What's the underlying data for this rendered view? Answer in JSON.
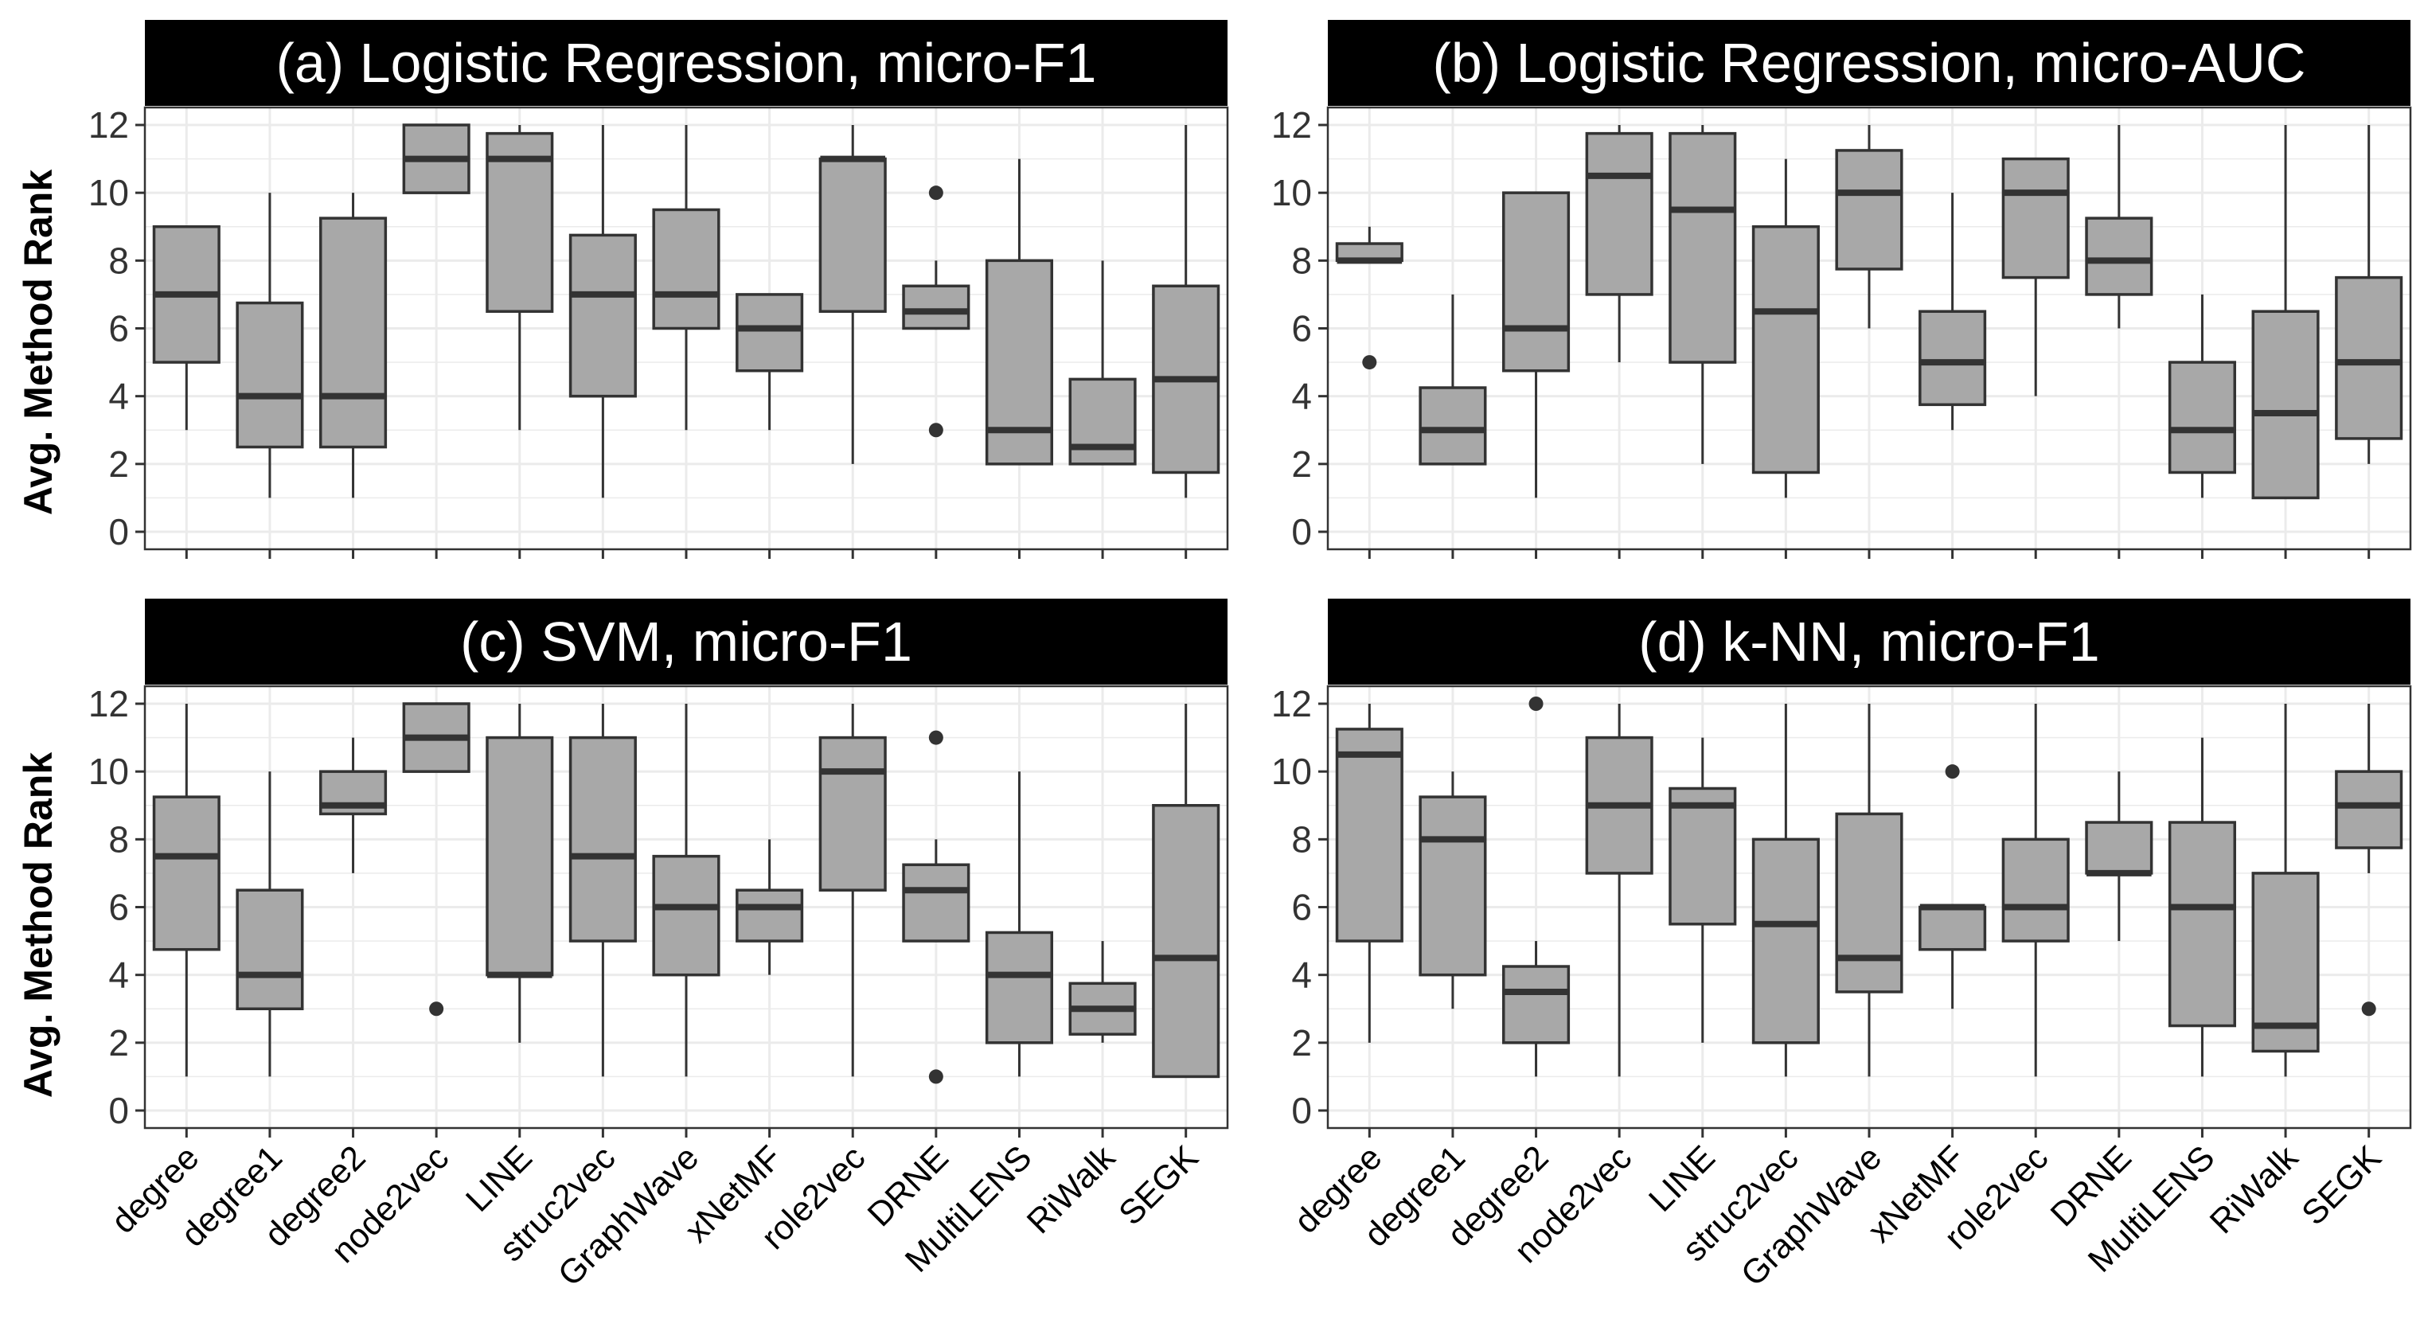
{
  "figure": {
    "ylabel": "Avg. Method Rank"
  },
  "chart_data": [
    {
      "type": "box",
      "title": "(a) Logistic Regression, micro-F1",
      "xlabel": "",
      "ylabel": "Avg. Method Rank",
      "ylim": [
        0,
        12
      ],
      "yticks": [
        0,
        2,
        4,
        6,
        8,
        10,
        12
      ],
      "categories": [
        "degree",
        "degree1",
        "degree2",
        "node2vec",
        "LINE",
        "struc2vec",
        "GraphWave",
        "xNetMF",
        "role2vec",
        "DRNE",
        "MultiLENS",
        "RiWalk",
        "SEGK"
      ],
      "boxes": [
        {
          "min": 3,
          "q1": 5,
          "median": 7,
          "q3": 9,
          "max": 9,
          "outliers": []
        },
        {
          "min": 1,
          "q1": 2.5,
          "median": 4,
          "q3": 6.75,
          "max": 10,
          "outliers": []
        },
        {
          "min": 1,
          "q1": 2.5,
          "median": 4,
          "q3": 9.25,
          "max": 10,
          "outliers": []
        },
        {
          "min": 10,
          "q1": 10,
          "median": 11,
          "q3": 12,
          "max": 12,
          "outliers": []
        },
        {
          "min": 3,
          "q1": 6.5,
          "median": 11,
          "q3": 11.75,
          "max": 12,
          "outliers": []
        },
        {
          "min": 1,
          "q1": 4,
          "median": 7,
          "q3": 8.75,
          "max": 12,
          "outliers": []
        },
        {
          "min": 3,
          "q1": 6,
          "median": 7,
          "q3": 9.5,
          "max": 12,
          "outliers": []
        },
        {
          "min": 3,
          "q1": 4.75,
          "median": 6,
          "q3": 7,
          "max": 7,
          "outliers": []
        },
        {
          "min": 2,
          "q1": 6.5,
          "median": 11,
          "q3": 11,
          "max": 12,
          "outliers": []
        },
        {
          "min": 6,
          "q1": 6,
          "median": 6.5,
          "q3": 7.25,
          "max": 8,
          "outliers": [
            10,
            3
          ]
        },
        {
          "min": 2,
          "q1": 2,
          "median": 3,
          "q3": 8,
          "max": 11,
          "outliers": []
        },
        {
          "min": 2,
          "q1": 2,
          "median": 2.5,
          "q3": 4.5,
          "max": 8,
          "outliers": []
        },
        {
          "min": 1,
          "q1": 1.75,
          "median": 4.5,
          "q3": 7.25,
          "max": 12,
          "outliers": []
        }
      ]
    },
    {
      "type": "box",
      "title": "(b) Logistic Regression, micro-AUC",
      "xlabel": "",
      "ylabel": "",
      "ylim": [
        0,
        12
      ],
      "yticks": [
        0,
        2,
        4,
        6,
        8,
        10,
        12
      ],
      "categories": [
        "degree",
        "degree1",
        "degree2",
        "node2vec",
        "LINE",
        "struc2vec",
        "GraphWave",
        "xNetMF",
        "role2vec",
        "DRNE",
        "MultiLENS",
        "RiWalk",
        "SEGK"
      ],
      "boxes": [
        {
          "min": 8,
          "q1": 8,
          "median": 8,
          "q3": 8.5,
          "max": 9,
          "outliers": [
            5
          ]
        },
        {
          "min": 2,
          "q1": 2,
          "median": 3,
          "q3": 4.25,
          "max": 7,
          "outliers": []
        },
        {
          "min": 1,
          "q1": 4.75,
          "median": 6,
          "q3": 10,
          "max": 10,
          "outliers": []
        },
        {
          "min": 5,
          "q1": 7,
          "median": 10.5,
          "q3": 11.75,
          "max": 12,
          "outliers": []
        },
        {
          "min": 2,
          "q1": 5,
          "median": 9.5,
          "q3": 11.75,
          "max": 12,
          "outliers": []
        },
        {
          "min": 1,
          "q1": 1.75,
          "median": 6.5,
          "q3": 9,
          "max": 11,
          "outliers": []
        },
        {
          "min": 6,
          "q1": 7.75,
          "median": 10,
          "q3": 11.25,
          "max": 12,
          "outliers": []
        },
        {
          "min": 3,
          "q1": 3.75,
          "median": 5,
          "q3": 6.5,
          "max": 10,
          "outliers": []
        },
        {
          "min": 4,
          "q1": 7.5,
          "median": 10,
          "q3": 11,
          "max": 11,
          "outliers": []
        },
        {
          "min": 6,
          "q1": 7,
          "median": 8,
          "q3": 9.25,
          "max": 12,
          "outliers": []
        },
        {
          "min": 1,
          "q1": 1.75,
          "median": 3,
          "q3": 5,
          "max": 7,
          "outliers": []
        },
        {
          "min": 1,
          "q1": 1,
          "median": 3.5,
          "q3": 6.5,
          "max": 12,
          "outliers": []
        },
        {
          "min": 2,
          "q1": 2.75,
          "median": 5,
          "q3": 7.5,
          "max": 12,
          "outliers": []
        }
      ]
    },
    {
      "type": "box",
      "title": "(c) SVM, micro-F1",
      "xlabel": "",
      "ylabel": "Avg. Method Rank",
      "ylim": [
        0,
        12
      ],
      "yticks": [
        0,
        2,
        4,
        6,
        8,
        10,
        12
      ],
      "categories": [
        "degree",
        "degree1",
        "degree2",
        "node2vec",
        "LINE",
        "struc2vec",
        "GraphWave",
        "xNetMF",
        "role2vec",
        "DRNE",
        "MultiLENS",
        "RiWalk",
        "SEGK"
      ],
      "boxes": [
        {
          "min": 1,
          "q1": 4.75,
          "median": 7.5,
          "q3": 9.25,
          "max": 12,
          "outliers": []
        },
        {
          "min": 1,
          "q1": 3,
          "median": 4,
          "q3": 6.5,
          "max": 10,
          "outliers": []
        },
        {
          "min": 7,
          "q1": 8.75,
          "median": 9,
          "q3": 10,
          "max": 11,
          "outliers": []
        },
        {
          "min": 10,
          "q1": 10,
          "median": 11,
          "q3": 12,
          "max": 12,
          "outliers": [
            3
          ]
        },
        {
          "min": 2,
          "q1": 4,
          "median": 4,
          "q3": 11,
          "max": 12,
          "outliers": []
        },
        {
          "min": 1,
          "q1": 5,
          "median": 7.5,
          "q3": 11,
          "max": 12,
          "outliers": []
        },
        {
          "min": 1,
          "q1": 4,
          "median": 6,
          "q3": 7.5,
          "max": 12,
          "outliers": []
        },
        {
          "min": 4,
          "q1": 5,
          "median": 6,
          "q3": 6.5,
          "max": 8,
          "outliers": []
        },
        {
          "min": 1,
          "q1": 6.5,
          "median": 10,
          "q3": 11,
          "max": 12,
          "outliers": []
        },
        {
          "min": 5,
          "q1": 5,
          "median": 6.5,
          "q3": 7.25,
          "max": 8,
          "outliers": [
            11,
            1
          ]
        },
        {
          "min": 1,
          "q1": 2,
          "median": 4,
          "q3": 5.25,
          "max": 10,
          "outliers": []
        },
        {
          "min": 2,
          "q1": 2.25,
          "median": 3,
          "q3": 3.75,
          "max": 5,
          "outliers": []
        },
        {
          "min": 1,
          "q1": 1,
          "median": 4.5,
          "q3": 9,
          "max": 12,
          "outliers": []
        }
      ]
    },
    {
      "type": "box",
      "title": "(d) k-NN, micro-F1",
      "xlabel": "",
      "ylabel": "",
      "ylim": [
        0,
        12
      ],
      "yticks": [
        0,
        2,
        4,
        6,
        8,
        10,
        12
      ],
      "categories": [
        "degree",
        "degree1",
        "degree2",
        "node2vec",
        "LINE",
        "struc2vec",
        "GraphWave",
        "xNetMF",
        "role2vec",
        "DRNE",
        "MultiLENS",
        "RiWalk",
        "SEGK"
      ],
      "boxes": [
        {
          "min": 2,
          "q1": 5,
          "median": 10.5,
          "q3": 11.25,
          "max": 12,
          "outliers": []
        },
        {
          "min": 3,
          "q1": 4,
          "median": 8,
          "q3": 9.25,
          "max": 10,
          "outliers": []
        },
        {
          "min": 1,
          "q1": 2,
          "median": 3.5,
          "q3": 4.25,
          "max": 5,
          "outliers": [
            12
          ]
        },
        {
          "min": 1,
          "q1": 7,
          "median": 9,
          "q3": 11,
          "max": 12,
          "outliers": []
        },
        {
          "min": 2,
          "q1": 5.5,
          "median": 9,
          "q3": 9.5,
          "max": 11,
          "outliers": []
        },
        {
          "min": 1,
          "q1": 2,
          "median": 5.5,
          "q3": 8,
          "max": 12,
          "outliers": []
        },
        {
          "min": 1,
          "q1": 3.5,
          "median": 4.5,
          "q3": 8.75,
          "max": 12,
          "outliers": []
        },
        {
          "min": 3,
          "q1": 4.75,
          "median": 6,
          "q3": 6,
          "max": 6,
          "outliers": [
            10
          ]
        },
        {
          "min": 1,
          "q1": 5,
          "median": 6,
          "q3": 8,
          "max": 12,
          "outliers": []
        },
        {
          "min": 5,
          "q1": 7,
          "median": 7,
          "q3": 8.5,
          "max": 10,
          "outliers": []
        },
        {
          "min": 1,
          "q1": 2.5,
          "median": 6,
          "q3": 8.5,
          "max": 11,
          "outliers": []
        },
        {
          "min": 1,
          "q1": 1.75,
          "median": 2.5,
          "q3": 7,
          "max": 12,
          "outliers": []
        },
        {
          "min": 7,
          "q1": 7.75,
          "median": 9,
          "q3": 10,
          "max": 12,
          "outliers": [
            3
          ]
        }
      ]
    }
  ],
  "colors": {
    "box_fill": "#a8a8a8",
    "stroke": "#333333",
    "grid": "#ebebeb",
    "panel_border": "#333333",
    "strip_bg": "#000000",
    "strip_text": "#ffffff"
  }
}
